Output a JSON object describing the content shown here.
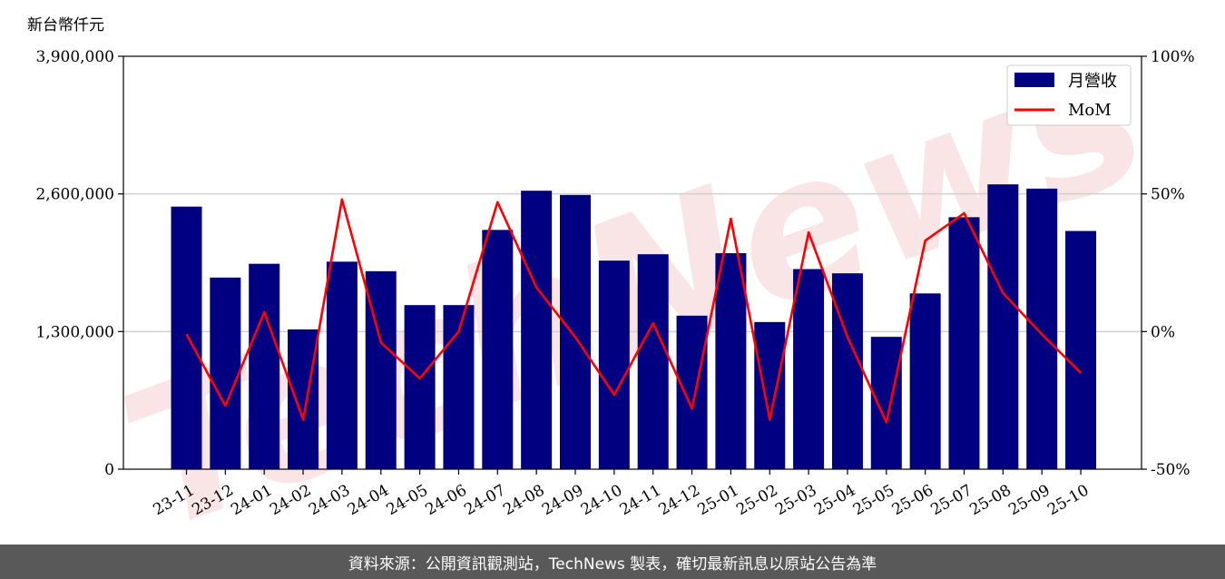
{
  "chart_data": {
    "type": "bar",
    "unit_label": "新台幣仟元",
    "categories": [
      "23-11",
      "23-12",
      "24-01",
      "24-02",
      "24-03",
      "24-04",
      "24-05",
      "24-06",
      "24-07",
      "24-08",
      "24-09",
      "24-10",
      "24-11",
      "24-12",
      "25-01",
      "25-02",
      "25-03",
      "25-04",
      "25-05",
      "25-06",
      "25-07",
      "25-08",
      "25-09",
      "25-10"
    ],
    "series": [
      {
        "name": "月營收",
        "kind": "bar",
        "axis": "left",
        "color": "#000080",
        "values": [
          2480000,
          1810000,
          1940000,
          1320000,
          1960000,
          1870000,
          1550000,
          1550000,
          2260000,
          2630000,
          2590000,
          1970000,
          2030000,
          1450000,
          2040000,
          1390000,
          1890000,
          1850000,
          1250000,
          1660000,
          2380000,
          2690000,
          2650000,
          2250000
        ]
      },
      {
        "name": "MoM",
        "kind": "line",
        "axis": "right",
        "color": "#ff0000",
        "values": [
          -1,
          -27,
          7,
          -32,
          48,
          -4,
          -17,
          0,
          47,
          16,
          -2,
          -23,
          3,
          -28,
          41,
          -32,
          36,
          -2,
          -33,
          33,
          43,
          14,
          -1,
          -15
        ]
      }
    ],
    "left_axis": {
      "ylim": [
        0,
        3900000
      ],
      "ticks": [
        "0",
        "1,300,000",
        "2,600,000",
        "3,900,000"
      ],
      "tick_values": [
        0,
        1300000,
        2600000,
        3900000
      ]
    },
    "right_axis": {
      "ylim": [
        -50,
        100
      ],
      "ticks": [
        "-50%",
        "0%",
        "50%",
        "100%"
      ],
      "tick_values": [
        -50,
        0,
        50,
        100
      ]
    },
    "grid": "horizontal",
    "legend_position": "top-right",
    "watermark": "TechNews"
  },
  "footer": {
    "text": "資料來源：公開資訊觀測站，TechNews 製表，確切最新訊息以原站公告為準"
  }
}
